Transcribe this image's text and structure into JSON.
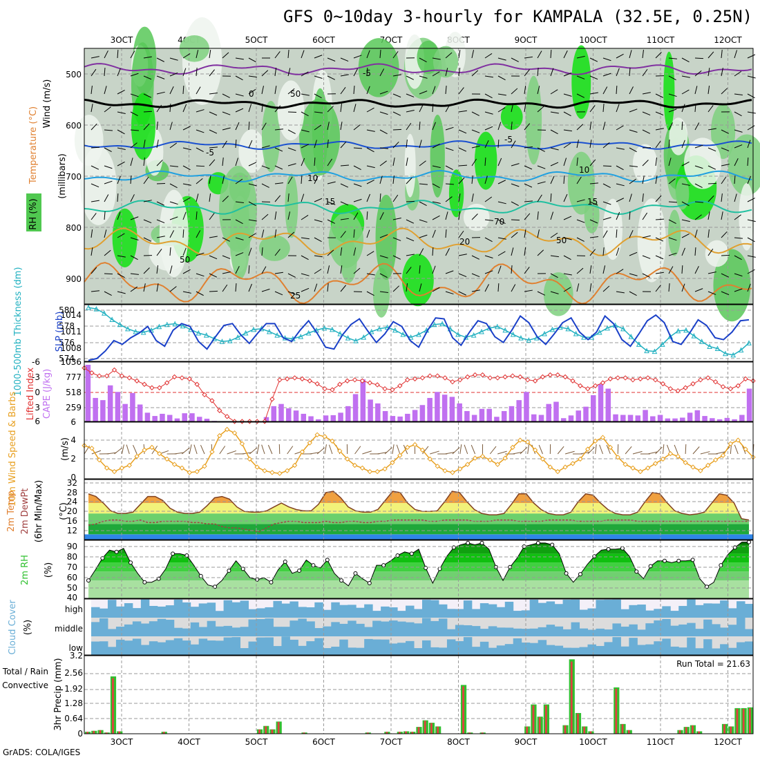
{
  "title": "GFS 0~10day 3-hourly for KAMPALA (32.5E, 0.25N)",
  "footer": "GrADS: COLA/IGES",
  "colors": {
    "rh": "#2ea82e",
    "temp": "#e08030",
    "wind": "#000000",
    "slp": "#1a40c8",
    "thick": "#20b0c0",
    "cape": "#c070f0",
    "li": "#e03030",
    "wind10": "#e8a020",
    "dew": "#a04040",
    "rain": "#30c030",
    "conv": "#e04040",
    "cloud": "#6aaed6",
    "cloudbg": "#dcdcdc"
  },
  "x_axis": {
    "top_labels": [
      "3OCT",
      "4OCT",
      "5OCT",
      "6OCT",
      "7OCT",
      "8OCT",
      "9OCT",
      "10OCT",
      "11OCT",
      "12OCT"
    ],
    "bottom_labels": [
      "3OCT",
      "4OCT",
      "5OCT",
      "6OCT",
      "7OCT",
      "8OCT",
      "9OCT",
      "10OCT",
      "11OCT",
      "12OCT"
    ]
  },
  "panels": {
    "upper": {
      "label_wind": "Wind (m/s)",
      "label_temp": "Temperature (°C)",
      "label_rh": "RH (%)",
      "label_mb": "(millibars)",
      "yticks": [
        "500",
        "600",
        "700",
        "800",
        "900"
      ],
      "contours": [
        "-5",
        "0",
        "-5",
        "-5",
        "10",
        "10",
        "15",
        "15",
        "20",
        "25",
        "50",
        "50",
        "70",
        "50"
      ]
    },
    "slp": {
      "label_thick": "1000-500mb Thickness (dm)",
      "label_slp": "SLP (mb)",
      "left_ticks": [
        "580",
        "578",
        "576",
        "574"
      ],
      "right_ticks": [
        "1014",
        "1011",
        "1008",
        "1036"
      ]
    },
    "cape": {
      "label_li": "Lifted Index",
      "label_cape": "CAPE (J/kg)",
      "left_ticks": [
        "-6",
        "-3",
        "0",
        "3",
        "6"
      ],
      "right_ticks": [
        "777",
        "518",
        "259"
      ]
    },
    "wind10": {
      "label": "10m Wind Speed & Barbs",
      "unit": "(m/s)",
      "ticks": [
        "6",
        "4",
        "2",
        "0"
      ]
    },
    "temp2m": {
      "label": "2m Temp 2m DewPt (6hr Min/Max)",
      "unit": "(°C)",
      "ticks": [
        "32",
        "28",
        "24",
        "20",
        "16",
        "12"
      ]
    },
    "rh2m": {
      "label": "2m RH",
      "unit": "(%)",
      "ticks": [
        "90",
        "80",
        "70",
        "60",
        "50",
        "40"
      ]
    },
    "cloud": {
      "label": "Cloud Cover",
      "unit": "(%)",
      "levels": [
        "high",
        "middle",
        "low"
      ]
    },
    "precip": {
      "label": "3hr Precip (mm)",
      "legend_total": "Total / Rain",
      "legend_conv": "Convective",
      "run_total": "Run Total = 21.63",
      "ticks": [
        "3.2",
        "2.56",
        "1.92",
        "1.28",
        "0.64",
        "0"
      ]
    }
  },
  "chart_data": [
    {
      "type": "line",
      "title": "1000-500mb Thickness (dm) / SLP (mb)",
      "ylim_thick": [
        573,
        581
      ],
      "ylim_slp": [
        1005,
        1017
      ],
      "series": [
        {
          "name": "SLP (mb)",
          "values": [
            1005.2,
            1005.6,
            1007.2,
            1009.4,
            1008.6,
            1010.0,
            1011.0,
            1012.4,
            1009.4,
            1008.2,
            1011.6,
            1013.0,
            1012.4,
            1009.2,
            1007.6,
            1010.2,
            1012.6,
            1013.0,
            1010.6,
            1008.8,
            1011.0,
            1013.0,
            1013.0,
            1010.0,
            1009.2,
            1011.6,
            1013.6,
            1011.0,
            1008.0,
            1007.6,
            1010.6,
            1012.8,
            1014.0,
            1011.4,
            1009.0,
            1010.8,
            1013.4,
            1012.4,
            1009.4,
            1008.0,
            1011.4,
            1014.2,
            1014.0,
            1010.0,
            1008.4,
            1011.2,
            1013.6,
            1013.0,
            1010.2,
            1009.0,
            1011.6,
            1014.6,
            1013.2,
            1010.2,
            1008.6,
            1010.8,
            1013.2,
            1014.2,
            1011.2,
            1009.6,
            1011.2,
            1014.6,
            1013.0,
            1009.6,
            1008.2,
            1010.8,
            1013.6,
            1014.8,
            1013.2,
            1009.2,
            1008.6,
            1011.0,
            1013.8,
            1012.6,
            1010.0,
            1009.6,
            1011.2,
            1013.6,
            1013.8
          ]
        },
        {
          "name": "1000-500mb Thickness (dm)",
          "values": [
            580.6,
            580.4,
            579.8,
            578.9,
            578.2,
            577.6,
            577.2,
            577.1,
            577.4,
            577.9,
            578.2,
            578.3,
            578.0,
            577.5,
            577.0,
            576.7,
            576.2,
            575.8,
            575.9,
            576.4,
            577.0,
            577.5,
            577.6,
            577.2,
            576.7,
            576.3,
            576.2,
            576.5,
            577.0,
            577.4,
            577.7,
            577.5,
            576.9,
            576.3,
            575.9,
            576.4,
            577.2,
            577.6,
            577.8,
            577.4,
            576.8,
            576.4,
            576.8,
            577.4,
            578.2,
            578.3,
            577.6,
            576.8,
            576.4,
            576.7,
            577.2,
            577.7,
            577.9,
            577.4,
            576.8,
            576.3,
            576.0,
            576.3,
            576.9,
            577.5,
            577.8,
            577.6,
            576.9,
            576.4,
            576.4,
            577.1,
            577.7,
            578.1,
            577.6,
            576.5,
            575.4,
            574.5,
            574.4,
            575.4,
            576.5,
            577.3,
            577.4,
            576.6,
            575.8,
            575.1,
            574.8,
            574.1,
            573.9,
            574.6,
            575.6
          ]
        }
      ]
    },
    {
      "type": "bar",
      "title": "CAPE (J/kg) / Lifted Index",
      "ylim_cape": [
        0,
        1036
      ],
      "ylim_li": [
        6,
        -6
      ],
      "series": [
        {
          "name": "CAPE (J/kg)",
          "values": [
            1036,
            430,
            390,
            660,
            540,
            320,
            520,
            310,
            160,
            100,
            140,
            120,
            55,
            150,
            150,
            85,
            50,
            10,
            0,
            0,
            0,
            0,
            0,
            0,
            80,
            280,
            320,
            240,
            200,
            140,
            95,
            40,
            110,
            115,
            160,
            280,
            500,
            770,
            400,
            330,
            190,
            100,
            90,
            140,
            210,
            300,
            430,
            540,
            490,
            450,
            330,
            190,
            120,
            230,
            230,
            85,
            190,
            280,
            390,
            540,
            130,
            120,
            320,
            360,
            60,
            110,
            200,
            270,
            480,
            680,
            600,
            130,
            120,
            120,
            110,
            210,
            95,
            120,
            55,
            55,
            70,
            160,
            205,
            100,
            60,
            40,
            65,
            40,
            120,
            600
          ]
        },
        {
          "name": "Lifted Index",
          "values": [
            -4.8,
            -3.8,
            -3.2,
            -3.2,
            -4.4,
            -3.2,
            -2.8,
            -2.2,
            -1.5,
            -0.8,
            -0.8,
            -1.8,
            -3.0,
            -2.8,
            -2.6,
            -1.5,
            0.6,
            1.8,
            3.8,
            5.0,
            6.0,
            6.0,
            6.0,
            6.0,
            6.0,
            1.5,
            -2.4,
            -2.6,
            -2.8,
            -2.6,
            -2.2,
            -1.6,
            -0.6,
            -0.4,
            -1.5,
            -2.2,
            -2.4,
            -2.2,
            -1.8,
            -1.4,
            -0.6,
            -0.4,
            -1.2,
            -2.4,
            -2.6,
            -2.8,
            -3.2,
            -3.2,
            -2.8,
            -2.0,
            -2.4,
            -3.0,
            -3.4,
            -3.4,
            -2.8,
            -2.8,
            -3.0,
            -3.2,
            -3.0,
            -2.4,
            -2.2,
            -3.0,
            -3.4,
            -3.4,
            -3.0,
            -2.2,
            -1.2,
            -0.6,
            -1.2,
            -1.8,
            -2.6,
            -2.8,
            -2.8,
            -2.4,
            -2.6,
            -2.8,
            -2.4,
            -1.6,
            -0.6,
            -0.2,
            -0.8,
            -1.6,
            -2.4,
            -2.8,
            -2.0,
            -1.0,
            -0.6,
            -1.2,
            -2.6,
            -2.2
          ]
        }
      ]
    },
    {
      "type": "line",
      "title": "10m Wind Speed (m/s)",
      "ylim": [
        0,
        6
      ],
      "series": [
        {
          "name": "10m Wind Speed",
          "values": [
            3.7,
            3.4,
            2.1,
            1.2,
            0.8,
            1.2,
            1.5,
            2.5,
            3.2,
            3.5,
            2.8,
            2.2,
            1.6,
            1.2,
            0.7,
            0.8,
            1.4,
            3.0,
            4.8,
            5.5,
            5.1,
            3.9,
            2.2,
            1.3,
            0.9,
            0.7,
            0.6,
            0.9,
            1.5,
            3.0,
            4.0,
            4.9,
            4.7,
            4.2,
            3.1,
            2.2,
            1.5,
            1.2,
            0.8,
            0.8,
            1.1,
            1.8,
            2.6,
            3.5,
            3.8,
            3.2,
            2.2,
            1.4,
            0.9,
            0.7,
            1.1,
            1.6,
            2.3,
            2.5,
            2.1,
            1.6,
            2.3,
            3.5,
            4.3,
            4.1,
            3.2,
            2.2,
            1.3,
            0.8,
            1.3,
            1.7,
            2.2,
            3.3,
            4.2,
            4.6,
            3.5,
            2.4,
            1.6,
            1.2,
            0.8,
            1.2,
            1.7,
            2.2,
            2.8,
            2.5,
            1.8,
            1.3,
            0.9,
            1.5,
            2.1,
            2.6,
            3.9,
            4.3,
            3.3,
            2.4
          ]
        }
      ]
    },
    {
      "type": "area",
      "title": "2m Temp / 2m DewPt (°C)",
      "ylim": [
        10,
        33
      ],
      "series": [
        {
          "name": "2m Temp",
          "values": [
            27.5,
            26.5,
            24.0,
            21.0,
            20.0,
            20.0,
            20.5,
            23.5,
            26.5,
            26.5,
            25.0,
            22.0,
            20.5,
            20.0,
            20.0,
            20.5,
            23.0,
            26.0,
            26.5,
            25.5,
            22.5,
            20.8,
            20.5,
            20.5,
            21.0,
            22.5,
            24.0,
            22.5,
            21.5,
            21.0,
            21.0,
            23.5,
            28.0,
            28.5,
            26.0,
            22.5,
            21.0,
            20.5,
            20.5,
            21.5,
            25.0,
            28.5,
            28.0,
            24.0,
            21.5,
            20.8,
            20.8,
            21.0,
            24.5,
            28.5,
            28.0,
            24.5,
            21.5,
            20.0,
            19.5,
            19.5,
            20.0,
            23.5,
            27.5,
            27.5,
            24.0,
            21.5,
            20.0,
            19.5,
            19.5,
            20.5,
            24.5,
            27.5,
            27.0,
            24.0,
            21.5,
            20.0,
            19.5,
            19.5,
            20.5,
            24.5,
            28.0,
            27.5,
            24.0,
            21.0,
            20.0,
            19.5,
            19.8,
            20.5,
            24.0,
            27.5,
            27.0,
            24.0,
            18.0,
            17.5
          ]
        },
        {
          "name": "2m DewPt",
          "values": [
            15.5,
            16.0,
            17.0,
            17.5,
            17.5,
            17.0,
            17.0,
            17.5,
            16.5,
            16.5,
            17.0,
            17.0,
            17.0,
            17.0,
            16.5,
            16.5,
            16.0,
            16.0,
            15.0,
            14.5,
            14.5,
            14.0,
            13.5,
            13.0,
            14.5,
            16.0,
            16.5,
            17.0,
            17.0,
            16.5,
            16.5,
            16.5,
            17.0,
            16.5,
            16.5,
            17.0,
            17.0,
            16.5,
            16.5,
            17.0,
            17.0,
            17.5,
            17.5,
            17.5,
            17.5,
            17.5,
            17.0,
            17.0,
            17.5,
            17.5,
            17.5,
            17.5,
            17.0,
            17.0,
            17.0,
            17.5,
            17.5,
            17.5,
            17.0,
            17.0,
            17.0,
            17.0,
            17.5,
            17.5,
            17.5,
            17.5,
            17.0,
            17.0,
            17.0,
            17.0,
            17.5,
            17.5,
            17.5,
            17.5,
            17.0,
            17.0,
            17.0,
            17.0,
            17.0,
            17.0,
            17.0,
            17.0,
            17.0,
            17.0,
            17.0,
            17.0,
            17.0,
            17.0,
            17.0,
            17.0
          ]
        }
      ]
    },
    {
      "type": "area",
      "title": "2m RH (%)",
      "ylim": [
        30,
        95
      ],
      "series": [
        {
          "name": "2m RH",
          "values": [
            50,
            62,
            75,
            84,
            82,
            86,
            70,
            58,
            48,
            48,
            52,
            63,
            80,
            80,
            78,
            67,
            55,
            45,
            43,
            50,
            61,
            72,
            63,
            53,
            51,
            53,
            48,
            62,
            71,
            58,
            61,
            73,
            67,
            64,
            73,
            58,
            50,
            44,
            58,
            52,
            47,
            67,
            67,
            72,
            78,
            82,
            80,
            85,
            64,
            47,
            63,
            77,
            87,
            90,
            92,
            90,
            92,
            85,
            65,
            50,
            65,
            75,
            88,
            90,
            92,
            92,
            90,
            80,
            58,
            48,
            57,
            68,
            77,
            84,
            85,
            85,
            86,
            77,
            60,
            52,
            66,
            72,
            72,
            70,
            72,
            72,
            73,
            52,
            43,
            48,
            67,
            79,
            87,
            93,
            93
          ]
        }
      ]
    },
    {
      "type": "bar",
      "title": "3hr Precip (mm)",
      "ylim": [
        0,
        3.2
      ],
      "series": [
        {
          "name": "Total / Rain",
          "values": [
            0.08,
            0.12,
            0.15,
            0.05,
            2.35,
            0.1,
            0,
            0,
            0,
            0,
            0,
            0,
            0.08,
            0,
            0,
            0,
            0,
            0,
            0,
            0,
            0,
            0,
            0,
            0,
            0,
            0,
            0,
            0.18,
            0.32,
            0.18,
            0.5,
            0,
            0,
            0,
            0.05,
            0,
            0,
            0,
            0,
            0,
            0,
            0,
            0,
            0,
            0.05,
            0,
            0,
            0.08,
            0,
            0.08,
            0.1,
            0.08,
            0.28,
            0.55,
            0.45,
            0.3,
            0,
            0,
            0,
            2.0,
            0.05,
            0,
            0.05,
            0,
            0,
            0,
            0,
            0,
            0,
            0.3,
            1.2,
            0.7,
            1.2,
            0,
            0,
            0.35,
            3.05,
            0.85,
            0.3,
            0.1,
            0,
            0,
            0,
            1.9,
            0.4,
            0.15,
            0,
            0,
            0,
            0,
            0,
            0,
            0,
            0.15,
            0.28,
            0.35,
            0.1,
            0,
            0,
            0,
            0.4,
            0.3,
            1.05,
            1.05,
            1.08
          ]
        }
      ]
    }
  ]
}
